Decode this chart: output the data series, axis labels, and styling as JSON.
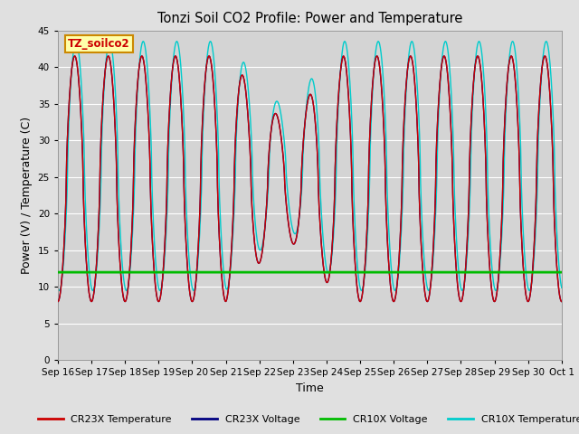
{
  "title": "Tonzi Soil CO2 Profile: Power and Temperature",
  "xlabel": "Time",
  "ylabel": "Power (V) / Temperature (C)",
  "ylim": [
    0,
    45
  ],
  "yticks": [
    0,
    5,
    10,
    15,
    20,
    25,
    30,
    35,
    40,
    45
  ],
  "background_color": "#e0e0e0",
  "plot_bg_color": "#d4d4d4",
  "series": {
    "CR23X_Temperature": {
      "color": "#cc0000",
      "linewidth": 1.0
    },
    "CR23X_Voltage": {
      "color": "#000080",
      "linewidth": 1.0
    },
    "CR10X_Voltage": {
      "color": "#00bb00",
      "linewidth": 2.0
    },
    "CR10X_Temperature": {
      "color": "#00cccc",
      "linewidth": 1.0
    }
  },
  "cr10x_voltage_value": 12.0,
  "n_days": 15,
  "tick_labels": [
    "Sep 16",
    "Sep 17",
    "Sep 18",
    "Sep 19",
    "Sep 20",
    "Sep 21",
    "Sep 22",
    "Sep 23",
    "Sep 24",
    "Sep 25",
    "Sep 26",
    "Sep 27",
    "Sep 28",
    "Sep 29",
    "Sep 30",
    "Oct 1"
  ],
  "figsize": [
    6.4,
    4.8
  ],
  "dpi": 100
}
